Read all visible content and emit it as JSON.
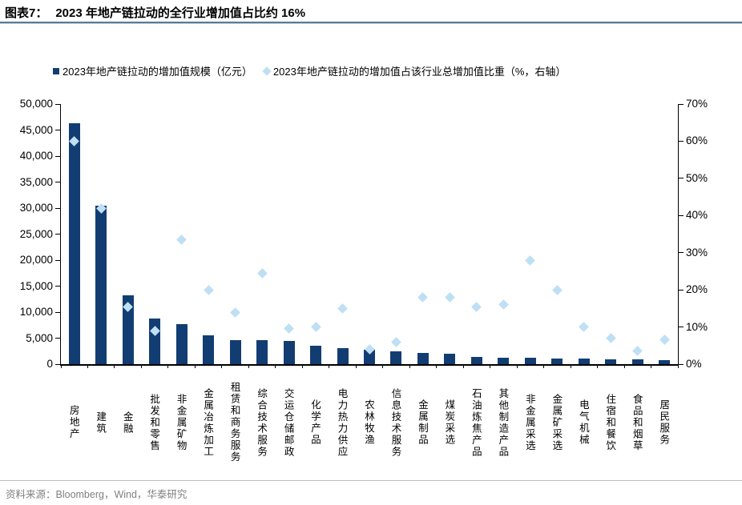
{
  "header": {
    "label": "图表7：",
    "title": "2023 年地产链拉动的全行业增加值占比约 16%"
  },
  "footer": {
    "text": "资料来源：Bloomberg，Wind，华泰研究"
  },
  "colors": {
    "bar": "#123d73",
    "diamond": "#bfdff4",
    "title_rule_dark": "#5f7a92",
    "title_rule_light": "#b9cfe6",
    "footer_text": "#808080"
  },
  "chart_data": {
    "type": "bar",
    "title": "2023 年地产链拉动的全行业增加值占比约 16%",
    "categories": [
      "房地产",
      "建筑",
      "金融",
      "批发和零售",
      "非金属矿物",
      "金属冶炼加工",
      "租赁和商务服务",
      "综合技术服务",
      "交运仓储邮政",
      "化学产品",
      "电力热力供应",
      "农林牧渔",
      "信息技术服务",
      "金属制品",
      "煤炭采选",
      "石油炼焦产品",
      "其他制造产品",
      "非金属采选",
      "金属矿采选",
      "电气机械",
      "住宿和餐饮",
      "食品和烟草",
      "居民服务"
    ],
    "series": [
      {
        "name": "2023年地产链拉动的增加值规模（亿元）",
        "type": "bar",
        "axis": "left",
        "color": "#123d73",
        "values": [
          46300,
          30500,
          13200,
          8800,
          7700,
          5600,
          4600,
          4600,
          4400,
          3600,
          3100,
          2700,
          2400,
          2200,
          2000,
          1400,
          1300,
          1300,
          1100,
          1100,
          900,
          900,
          800
        ]
      },
      {
        "name": "2023年地产链拉动的增加值占该行业总增加值比重（%，右轴）",
        "type": "scatter-diamond",
        "axis": "right",
        "color": "#bfdff4",
        "values": [
          60,
          42,
          15.5,
          9,
          33.5,
          20,
          14,
          24.5,
          9.5,
          10,
          15,
          4,
          6,
          18,
          18,
          15.5,
          16,
          28,
          20,
          10,
          7,
          3.5,
          6.5
        ]
      }
    ],
    "left_axis": {
      "min": 0,
      "max": 50000,
      "step": 5000,
      "tick_labels": [
        "0",
        "5,000",
        "10,000",
        "15,000",
        "20,000",
        "25,000",
        "30,000",
        "35,000",
        "40,000",
        "45,000",
        "50,000"
      ]
    },
    "right_axis": {
      "min": 0,
      "max": 70,
      "step": 10,
      "tick_labels": [
        "0%",
        "10%",
        "20%",
        "30%",
        "40%",
        "50%",
        "60%",
        "70%"
      ]
    },
    "grid": false,
    "legend_position": "top-left"
  }
}
